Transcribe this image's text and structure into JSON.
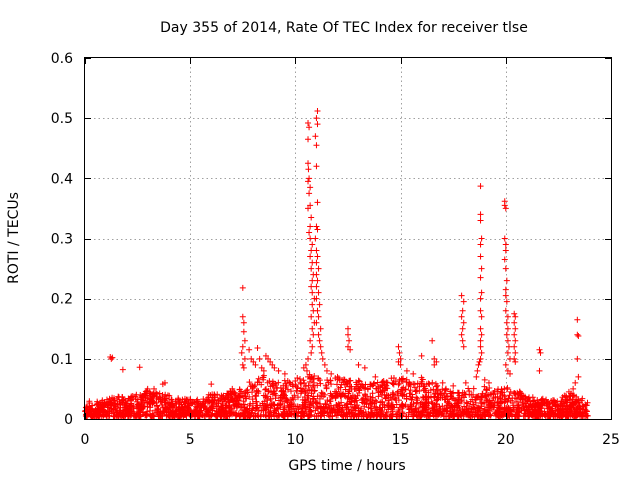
{
  "chart_data": {
    "type": "scatter",
    "title": "Day 355 of 2014, Rate Of TEC Index for receiver tlse",
    "xlabel": "GPS time / hours",
    "ylabel": "ROTI / TECUs",
    "xlim": [
      0,
      25
    ],
    "ylim": [
      0,
      0.6
    ],
    "xticks": [
      0,
      5,
      10,
      15,
      20,
      25
    ],
    "yticks": [
      0,
      0.1,
      0.2,
      0.3,
      0.4,
      0.5,
      0.6
    ],
    "xtick_labels": [
      "0",
      "5",
      "10",
      "15",
      "20",
      "25"
    ],
    "ytick_labels": [
      "0",
      "0.1",
      "0.2",
      "0.3",
      "0.4",
      "0.5",
      "0.6"
    ],
    "grid": true,
    "marker": "+",
    "color": "#ff0000",
    "series": [
      {
        "name": "ROTI",
        "points": [
          [
            1.2,
            0.103
          ],
          [
            1.25,
            0.1
          ],
          [
            1.3,
            0.102
          ],
          [
            1.8,
            0.082
          ],
          [
            2.6,
            0.086
          ],
          [
            3.7,
            0.058
          ],
          [
            3.8,
            0.06
          ],
          [
            6.0,
            0.058
          ],
          [
            7.0,
            0.05
          ],
          [
            7.2,
            0.035
          ],
          [
            7.5,
            0.218
          ],
          [
            7.5,
            0.17
          ],
          [
            7.55,
            0.16
          ],
          [
            7.55,
            0.145
          ],
          [
            7.6,
            0.13
          ],
          [
            7.5,
            0.12
          ],
          [
            7.45,
            0.11
          ],
          [
            7.6,
            0.1
          ],
          [
            7.5,
            0.09
          ],
          [
            7.55,
            0.085
          ],
          [
            7.8,
            0.115
          ],
          [
            7.9,
            0.1
          ],
          [
            8.0,
            0.095
          ],
          [
            8.1,
            0.09
          ],
          [
            8.2,
            0.118
          ],
          [
            8.3,
            0.1
          ],
          [
            8.4,
            0.085
          ],
          [
            8.5,
            0.08
          ],
          [
            8.6,
            0.105
          ],
          [
            8.7,
            0.1
          ],
          [
            8.8,
            0.095
          ],
          [
            8.9,
            0.09
          ],
          [
            9.0,
            0.085
          ],
          [
            9.2,
            0.08
          ],
          [
            9.5,
            0.075
          ],
          [
            10.6,
            0.492
          ],
          [
            10.65,
            0.485
          ],
          [
            10.6,
            0.465
          ],
          [
            10.6,
            0.425
          ],
          [
            10.62,
            0.415
          ],
          [
            10.65,
            0.4
          ],
          [
            10.6,
            0.395
          ],
          [
            10.7,
            0.385
          ],
          [
            10.65,
            0.375
          ],
          [
            10.7,
            0.355
          ],
          [
            10.6,
            0.35
          ],
          [
            10.75,
            0.335
          ],
          [
            10.7,
            0.32
          ],
          [
            10.65,
            0.31
          ],
          [
            10.7,
            0.3
          ],
          [
            10.8,
            0.29
          ],
          [
            10.75,
            0.28
          ],
          [
            10.7,
            0.27
          ],
          [
            10.8,
            0.26
          ],
          [
            10.75,
            0.25
          ],
          [
            10.85,
            0.24
          ],
          [
            10.8,
            0.23
          ],
          [
            10.75,
            0.22
          ],
          [
            10.8,
            0.21
          ],
          [
            10.9,
            0.2
          ],
          [
            10.8,
            0.19
          ],
          [
            10.85,
            0.18
          ],
          [
            10.75,
            0.17
          ],
          [
            10.9,
            0.16
          ],
          [
            10.8,
            0.15
          ],
          [
            10.85,
            0.14
          ],
          [
            10.7,
            0.13
          ],
          [
            10.8,
            0.12
          ],
          [
            10.75,
            0.11
          ],
          [
            10.6,
            0.1
          ],
          [
            10.5,
            0.09
          ],
          [
            10.4,
            0.085
          ],
          [
            10.55,
            0.08
          ],
          [
            11.05,
            0.512
          ],
          [
            11.0,
            0.5
          ],
          [
            11.05,
            0.49
          ],
          [
            10.95,
            0.47
          ],
          [
            11.0,
            0.455
          ],
          [
            11.0,
            0.42
          ],
          [
            11.05,
            0.36
          ],
          [
            11.0,
            0.32
          ],
          [
            11.05,
            0.315
          ],
          [
            10.95,
            0.3
          ],
          [
            11.0,
            0.28
          ],
          [
            11.05,
            0.27
          ],
          [
            11.0,
            0.26
          ],
          [
            11.1,
            0.25
          ],
          [
            11.0,
            0.24
          ],
          [
            11.05,
            0.23
          ],
          [
            11.0,
            0.22
          ],
          [
            11.1,
            0.21
          ],
          [
            11.0,
            0.2
          ],
          [
            11.15,
            0.19
          ],
          [
            11.05,
            0.18
          ],
          [
            11.1,
            0.17
          ],
          [
            11.0,
            0.16
          ],
          [
            11.2,
            0.15
          ],
          [
            11.1,
            0.14
          ],
          [
            11.15,
            0.13
          ],
          [
            11.2,
            0.12
          ],
          [
            11.25,
            0.11
          ],
          [
            11.3,
            0.1
          ],
          [
            11.4,
            0.09
          ],
          [
            11.5,
            0.08
          ],
          [
            11.7,
            0.075
          ],
          [
            12.0,
            0.07
          ],
          [
            12.5,
            0.15
          ],
          [
            12.5,
            0.14
          ],
          [
            12.55,
            0.13
          ],
          [
            12.5,
            0.12
          ],
          [
            12.6,
            0.115
          ],
          [
            13.0,
            0.09
          ],
          [
            13.3,
            0.085
          ],
          [
            13.8,
            0.07
          ],
          [
            14.9,
            0.12
          ],
          [
            14.95,
            0.11
          ],
          [
            15.0,
            0.1
          ],
          [
            14.9,
            0.095
          ],
          [
            15.0,
            0.09
          ],
          [
            15.3,
            0.08
          ],
          [
            15.6,
            0.075
          ],
          [
            16.0,
            0.105
          ],
          [
            16.5,
            0.13
          ],
          [
            16.6,
            0.1
          ],
          [
            16.7,
            0.095
          ],
          [
            16.6,
            0.09
          ],
          [
            17.0,
            0.06
          ],
          [
            17.5,
            0.055
          ],
          [
            17.9,
            0.205
          ],
          [
            18.0,
            0.195
          ],
          [
            17.95,
            0.18
          ],
          [
            17.9,
            0.17
          ],
          [
            18.0,
            0.16
          ],
          [
            17.95,
            0.15
          ],
          [
            17.9,
            0.14
          ],
          [
            17.95,
            0.13
          ],
          [
            18.0,
            0.12
          ],
          [
            18.1,
            0.06
          ],
          [
            18.8,
            0.387
          ],
          [
            18.8,
            0.34
          ],
          [
            18.8,
            0.33
          ],
          [
            18.85,
            0.3
          ],
          [
            18.8,
            0.29
          ],
          [
            18.8,
            0.27
          ],
          [
            18.85,
            0.25
          ],
          [
            18.8,
            0.235
          ],
          [
            18.85,
            0.21
          ],
          [
            18.8,
            0.2
          ],
          [
            18.8,
            0.18
          ],
          [
            18.85,
            0.17
          ],
          [
            18.8,
            0.15
          ],
          [
            18.85,
            0.14
          ],
          [
            18.8,
            0.13
          ],
          [
            18.8,
            0.12
          ],
          [
            18.85,
            0.11
          ],
          [
            18.8,
            0.1
          ],
          [
            18.75,
            0.095
          ],
          [
            18.7,
            0.09
          ],
          [
            18.65,
            0.08
          ],
          [
            18.6,
            0.07
          ],
          [
            19.0,
            0.065
          ],
          [
            19.2,
            0.06
          ],
          [
            19.95,
            0.362
          ],
          [
            19.95,
            0.355
          ],
          [
            20.0,
            0.35
          ],
          [
            19.95,
            0.3
          ],
          [
            20.0,
            0.29
          ],
          [
            20.0,
            0.28
          ],
          [
            19.95,
            0.265
          ],
          [
            20.0,
            0.25
          ],
          [
            20.05,
            0.23
          ],
          [
            20.0,
            0.215
          ],
          [
            20.0,
            0.205
          ],
          [
            20.05,
            0.195
          ],
          [
            20.0,
            0.18
          ],
          [
            20.1,
            0.17
          ],
          [
            20.05,
            0.16
          ],
          [
            20.1,
            0.15
          ],
          [
            20.05,
            0.14
          ],
          [
            20.1,
            0.13
          ],
          [
            20.15,
            0.12
          ],
          [
            20.1,
            0.11
          ],
          [
            20.2,
            0.1
          ],
          [
            20.0,
            0.09
          ],
          [
            20.1,
            0.08
          ],
          [
            20.2,
            0.075
          ],
          [
            20.4,
            0.175
          ],
          [
            20.45,
            0.17
          ],
          [
            20.4,
            0.16
          ],
          [
            20.45,
            0.15
          ],
          [
            20.4,
            0.14
          ],
          [
            20.45,
            0.13
          ],
          [
            20.4,
            0.12
          ],
          [
            20.45,
            0.11
          ],
          [
            20.4,
            0.1
          ],
          [
            20.45,
            0.095
          ],
          [
            21.6,
            0.115
          ],
          [
            21.65,
            0.11
          ],
          [
            21.6,
            0.08
          ],
          [
            23.4,
            0.165
          ],
          [
            23.4,
            0.14
          ],
          [
            23.45,
            0.138
          ],
          [
            23.4,
            0.1
          ],
          [
            23.45,
            0.07
          ],
          [
            23.3,
            0.06
          ],
          [
            23.2,
            0.05
          ],
          [
            23.0,
            0.045
          ]
        ]
      }
    ],
    "baseline_envelope": [
      [
        0.0,
        0.03
      ],
      [
        0.5,
        0.025
      ],
      [
        1.0,
        0.028
      ],
      [
        1.5,
        0.035
      ],
      [
        2.0,
        0.033
      ],
      [
        2.5,
        0.038
      ],
      [
        3.0,
        0.048
      ],
      [
        3.5,
        0.045
      ],
      [
        4.0,
        0.035
      ],
      [
        4.5,
        0.03
      ],
      [
        5.0,
        0.03
      ],
      [
        5.5,
        0.028
      ],
      [
        6.0,
        0.04
      ],
      [
        6.5,
        0.035
      ],
      [
        7.0,
        0.045
      ],
      [
        7.5,
        0.05
      ],
      [
        8.0,
        0.065
      ],
      [
        8.5,
        0.07
      ],
      [
        9.0,
        0.06
      ],
      [
        9.5,
        0.06
      ],
      [
        10.0,
        0.065
      ],
      [
        10.5,
        0.07
      ],
      [
        11.0,
        0.07
      ],
      [
        11.5,
        0.065
      ],
      [
        12.0,
        0.065
      ],
      [
        12.5,
        0.06
      ],
      [
        13.0,
        0.06
      ],
      [
        13.5,
        0.055
      ],
      [
        14.0,
        0.06
      ],
      [
        14.5,
        0.065
      ],
      [
        15.0,
        0.065
      ],
      [
        15.5,
        0.06
      ],
      [
        16.0,
        0.065
      ],
      [
        16.5,
        0.06
      ],
      [
        17.0,
        0.05
      ],
      [
        17.5,
        0.04
      ],
      [
        18.0,
        0.045
      ],
      [
        18.5,
        0.05
      ],
      [
        19.0,
        0.05
      ],
      [
        19.5,
        0.045
      ],
      [
        20.0,
        0.05
      ],
      [
        20.5,
        0.045
      ],
      [
        21.0,
        0.035
      ],
      [
        21.5,
        0.03
      ],
      [
        22.0,
        0.03
      ],
      [
        22.5,
        0.03
      ],
      [
        23.0,
        0.04
      ],
      [
        23.5,
        0.035
      ],
      [
        23.9,
        0.025
      ]
    ]
  }
}
